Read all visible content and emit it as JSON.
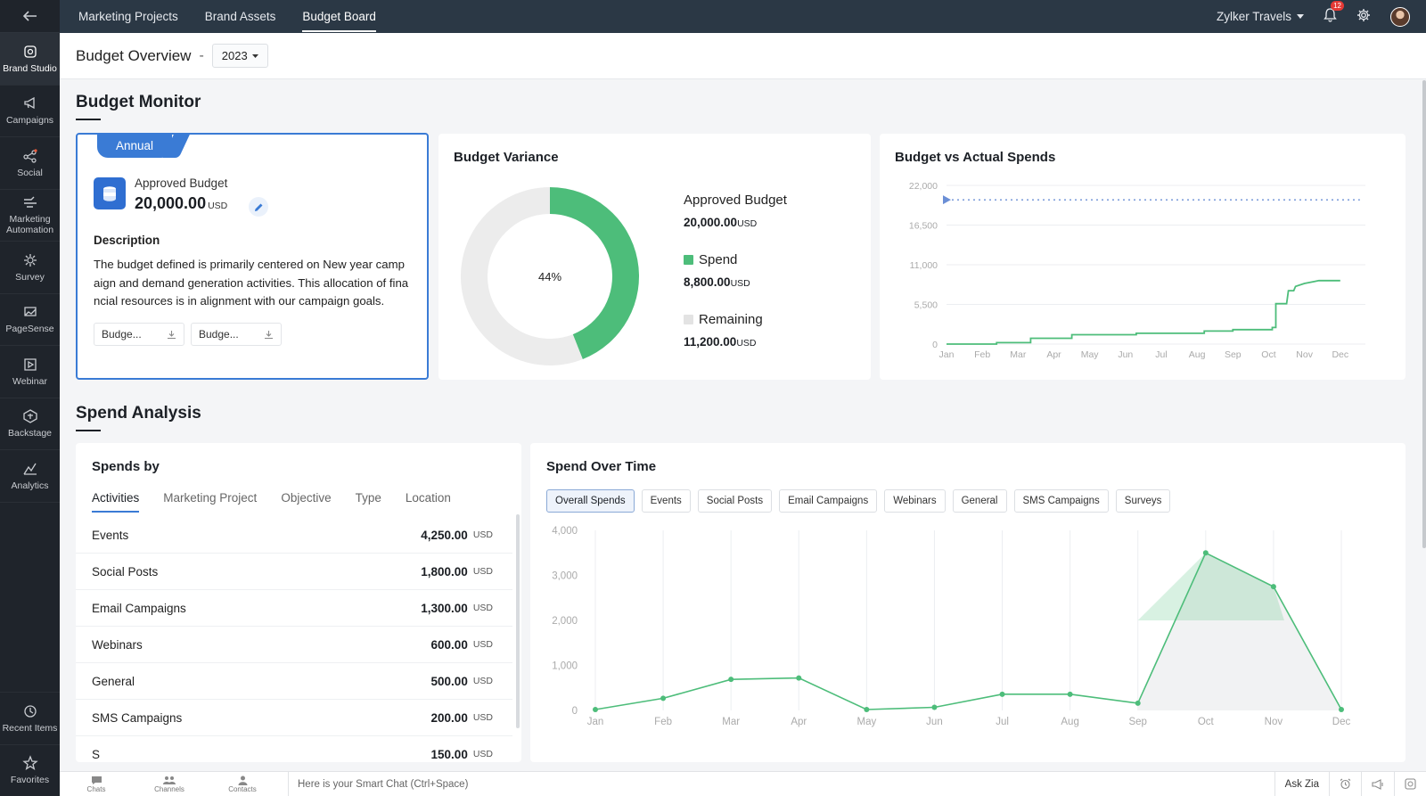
{
  "sidebar": {
    "items": [
      {
        "label": "Brand Studio",
        "icon": "brand-studio-icon"
      },
      {
        "label": "Campaigns",
        "icon": "megaphone-icon"
      },
      {
        "label": "Social",
        "icon": "social-icon"
      },
      {
        "label": "Marketing Automation",
        "icon": "automation-icon"
      },
      {
        "label": "Survey",
        "icon": "survey-icon"
      },
      {
        "label": "PageSense",
        "icon": "pagesense-icon"
      },
      {
        "label": "Webinar",
        "icon": "webinar-icon"
      },
      {
        "label": "Backstage",
        "icon": "backstage-icon"
      },
      {
        "label": "Analytics",
        "icon": "analytics-icon"
      }
    ],
    "bottom": [
      {
        "label": "Recent Items",
        "icon": "history-icon"
      },
      {
        "label": "Favorites",
        "icon": "star-icon"
      }
    ]
  },
  "topbar": {
    "tabs": [
      "Marketing Projects",
      "Brand Assets",
      "Budget Board"
    ],
    "active_tab": "Budget Board",
    "org": "Zylker Travels",
    "notification_count": "12"
  },
  "header": {
    "title": "Budget Overview",
    "separator": "-",
    "year": "2023"
  },
  "budget_monitor": {
    "section_title": "Budget Monitor",
    "annual": {
      "tab": "Annual",
      "approved_label": "Approved Budget",
      "approved_value": "20,000.00",
      "unit": "USD",
      "description_heading": "Description",
      "description": "The budget defined is primarily centered on New year campaign and demand generation activities. This allocation of financial resources is in alignment with our campaign goals.",
      "attachments": [
        "Budge...",
        "Budge..."
      ]
    },
    "variance": {
      "title": "Budget Variance",
      "center_label": "44%",
      "approved_label": "Approved Budget",
      "approved_value": "20,000.00",
      "spend_label": "Spend",
      "spend_value": "8,800.00",
      "remaining_label": "Remaining",
      "remaining_value": "11,200.00",
      "unit": "USD",
      "spend_fraction": 0.44,
      "colors": {
        "spend": "#4dbd7a",
        "remaining": "#ececec"
      }
    },
    "bva": {
      "title": "Budget vs Actual Spends"
    }
  },
  "spend_analysis": {
    "section_title": "Spend Analysis",
    "spends_by": {
      "title": "Spends by",
      "tabs": [
        "Activities",
        "Marketing Project",
        "Objective",
        "Type",
        "Location"
      ],
      "active_tab": "Activities",
      "unit": "USD",
      "rows": [
        {
          "name": "Events",
          "value": "4,250.00"
        },
        {
          "name": "Social Posts",
          "value": "1,800.00"
        },
        {
          "name": "Email Campaigns",
          "value": "1,300.00"
        },
        {
          "name": "Webinars",
          "value": "600.00"
        },
        {
          "name": "General",
          "value": "500.00"
        },
        {
          "name": "SMS Campaigns",
          "value": "200.00"
        },
        {
          "name": "S",
          "value": "150.00"
        }
      ]
    },
    "spend_over_time": {
      "title": "Spend Over Time",
      "filters": [
        "Overall Spends",
        "Events",
        "Social Posts",
        "Email Campaigns",
        "Webinars",
        "General",
        "SMS Campaigns",
        "Surveys"
      ],
      "active_filter": "Overall Spends"
    }
  },
  "chart_data": [
    {
      "type": "pie",
      "title": "Budget Variance",
      "categories": [
        "Spend",
        "Remaining"
      ],
      "values": [
        8800,
        11200
      ],
      "center_label": "44%"
    },
    {
      "type": "line",
      "title": "Budget vs Actual Spends",
      "categories": [
        "Jan",
        "Feb",
        "Mar",
        "Apr",
        "May",
        "Jun",
        "Jul",
        "Aug",
        "Sep",
        "Oct",
        "Nov",
        "Dec"
      ],
      "yticks": [
        "0",
        "5,500",
        "11,000",
        "16,500",
        "22,000"
      ],
      "ylim": [
        0,
        22000
      ],
      "series": [
        {
          "name": "Approved Budget",
          "style": "dotted",
          "color": "#6b8fd6",
          "points": [
            [
              0,
              20000
            ],
            [
              11.1,
              20000
            ]
          ]
        },
        {
          "name": "Spend",
          "style": "step",
          "color": "#4dbd7a",
          "points": [
            [
              0,
              0
            ],
            [
              1.4,
              0
            ],
            [
              1.4,
              200
            ],
            [
              2.35,
              200
            ],
            [
              2.35,
              800
            ],
            [
              3.5,
              800
            ],
            [
              3.5,
              1300
            ],
            [
              5.3,
              1300
            ],
            [
              5.3,
              1500
            ],
            [
              7.2,
              1500
            ],
            [
              7.2,
              1800
            ],
            [
              8.0,
              1800
            ],
            [
              8.0,
              2000
            ],
            [
              9.1,
              2000
            ],
            [
              9.1,
              2300
            ],
            [
              9.2,
              2300
            ],
            [
              9.2,
              5600
            ],
            [
              9.5,
              5600
            ],
            [
              9.55,
              7400
            ],
            [
              9.7,
              7400
            ],
            [
              9.75,
              8000
            ],
            [
              10.0,
              8400
            ],
            [
              10.3,
              8700
            ],
            [
              10.4,
              8800
            ],
            [
              11.0,
              8800
            ]
          ]
        }
      ]
    },
    {
      "type": "area",
      "title": "Spend Over Time",
      "categories": [
        "Jan",
        "Feb",
        "Mar",
        "Apr",
        "May",
        "Jun",
        "Jul",
        "Aug",
        "Sep",
        "Oct",
        "Nov",
        "Dec"
      ],
      "yticks": [
        "0",
        "1,000",
        "2,000",
        "3,000",
        "4,000"
      ],
      "ylim": [
        0,
        4000
      ],
      "values": [
        20,
        270,
        690,
        720,
        20,
        70,
        360,
        360,
        160,
        3500,
        2750,
        20
      ],
      "color": "#4dbd7a"
    }
  ],
  "bottombar": {
    "items": [
      "Chats",
      "Channels",
      "Contacts"
    ],
    "smart_chat": "Here is your Smart Chat (Ctrl+Space)",
    "ask_zia": "Ask Zia"
  }
}
